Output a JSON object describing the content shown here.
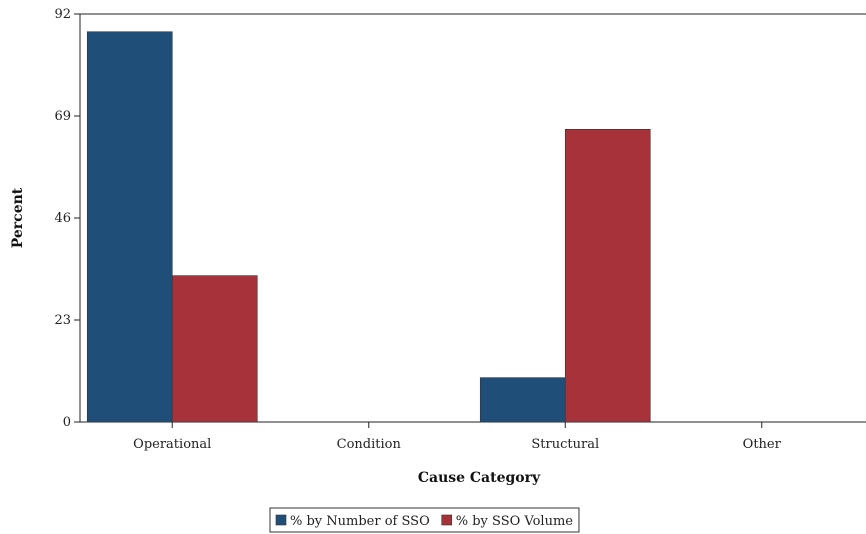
{
  "chart_data": {
    "type": "bar",
    "categories": [
      "Operational",
      "Condition",
      "Structural",
      "Other"
    ],
    "series": [
      {
        "name": "% by Number of SSO",
        "values": [
          88,
          0,
          10,
          0
        ],
        "color": "#1f4e79"
      },
      {
        "name": "% by SSO Volume",
        "values": [
          33,
          0,
          66,
          0
        ],
        "color": "#a8323a"
      }
    ],
    "title": "",
    "xlabel": "Cause Category",
    "ylabel": "Percent",
    "ylim": [
      0,
      92
    ],
    "yticks": [
      "0",
      "23",
      "46",
      "69",
      "92"
    ],
    "grid": false,
    "legend_position": "bottom-center"
  }
}
